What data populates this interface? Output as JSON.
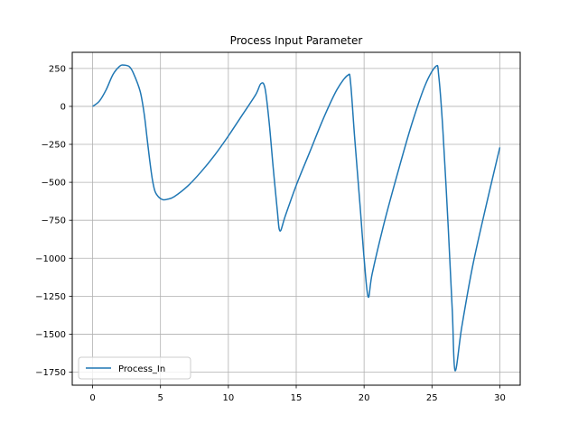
{
  "colors": {
    "series": "#1f77b4",
    "grid": "#b0b0b0",
    "axes": "#000000",
    "background": "#ffffff"
  },
  "chart_data": {
    "type": "line",
    "title": "Process Input Parameter",
    "xlabel": "",
    "ylabel": "",
    "xlim": [
      -1.5,
      31.5
    ],
    "ylim": [
      -1836,
      356
    ],
    "xticks": [
      0,
      5,
      10,
      15,
      20,
      25,
      30
    ],
    "xtick_labels": [
      "0",
      "5",
      "10",
      "15",
      "20",
      "25",
      "30"
    ],
    "yticks": [
      250,
      0,
      -250,
      -500,
      -750,
      -1000,
      -1250,
      -1500,
      -1750
    ],
    "ytick_labels": [
      "250",
      "0",
      "−250",
      "−500",
      "−750",
      "−1000",
      "−1250",
      "−1500",
      "−1750"
    ],
    "grid": true,
    "legend": {
      "position": "lower-left",
      "entries": [
        "Process_In"
      ]
    },
    "series": [
      {
        "name": "Process_In",
        "color": "#1f77b4",
        "points": [
          [
            0,
            0
          ],
          [
            0.5,
            35
          ],
          [
            1.0,
            110
          ],
          [
            1.5,
            210
          ],
          [
            2.0,
            265
          ],
          [
            2.3,
            272
          ],
          [
            2.7,
            262
          ],
          [
            3.0,
            220
          ],
          [
            3.5,
            100
          ],
          [
            3.8,
            -50
          ],
          [
            4.0,
            -200
          ],
          [
            4.2,
            -350
          ],
          [
            4.4,
            -480
          ],
          [
            4.6,
            -560
          ],
          [
            4.9,
            -600
          ],
          [
            5.2,
            -615
          ],
          [
            5.5,
            -612
          ],
          [
            6.0,
            -595
          ],
          [
            7.0,
            -525
          ],
          [
            8.0,
            -430
          ],
          [
            9.0,
            -320
          ],
          [
            10.0,
            -195
          ],
          [
            11.0,
            -60
          ],
          [
            12.0,
            75
          ],
          [
            12.4,
            150
          ],
          [
            12.7,
            120
          ],
          [
            13.0,
            -100
          ],
          [
            13.3,
            -400
          ],
          [
            13.6,
            -680
          ],
          [
            13.8,
            -820
          ],
          [
            14.2,
            -720
          ],
          [
            15.0,
            -520
          ],
          [
            16.0,
            -300
          ],
          [
            17.0,
            -80
          ],
          [
            18.0,
            110
          ],
          [
            18.8,
            205
          ],
          [
            19.0,
            160
          ],
          [
            19.3,
            -200
          ],
          [
            19.7,
            -650
          ],
          [
            20.0,
            -1000
          ],
          [
            20.3,
            -1255
          ],
          [
            20.6,
            -1100
          ],
          [
            21.5,
            -760
          ],
          [
            22.5,
            -430
          ],
          [
            23.5,
            -120
          ],
          [
            24.5,
            140
          ],
          [
            25.3,
            265
          ],
          [
            25.5,
            200
          ],
          [
            25.8,
            -150
          ],
          [
            26.2,
            -800
          ],
          [
            26.5,
            -1350
          ],
          [
            26.7,
            -1740
          ],
          [
            27.2,
            -1450
          ],
          [
            28.0,
            -1050
          ],
          [
            29.0,
            -650
          ],
          [
            30.0,
            -270
          ]
        ]
      }
    ]
  }
}
